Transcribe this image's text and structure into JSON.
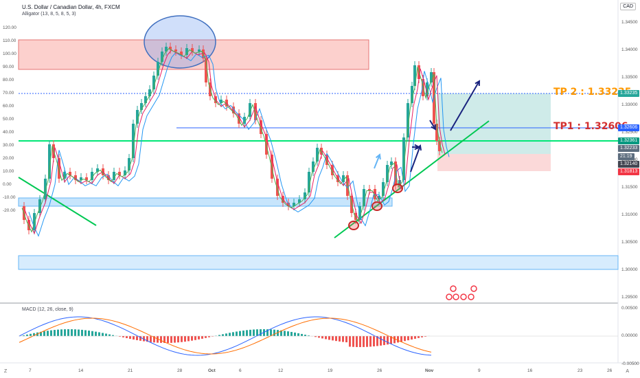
{
  "header": {
    "title": "U.S. Dollar / Canadian Dollar, 4h, FXCM",
    "indicator": "Alligator (13, 8, 5, 8, 5, 3)",
    "currency": "CAD"
  },
  "left_axis": [
    "120.00",
    "110.00",
    "100.00",
    "90.00",
    "80.00",
    "70.00",
    "60.00",
    "50.00",
    "40.00",
    "30.00",
    "20.00",
    "10.00",
    "0.00",
    "-10.00",
    "-20.00"
  ],
  "right_axis": [
    "1.34500",
    "1.34000",
    "1.33500",
    "1.33000",
    "1.32500",
    "1.32000",
    "1.31500",
    "1.31000",
    "1.30500",
    "1.30000",
    "1.29500"
  ],
  "price_badges": [
    {
      "text": "1.33235",
      "color": "#26a69a"
    },
    {
      "text": "1.32606",
      "color": "#2962ff"
    },
    {
      "text": "1.32361",
      "color": "#089981"
    },
    {
      "text": "1.32233",
      "color": "#5d6d7e"
    },
    {
      "text": "21:19",
      "color": "#5d6d7e"
    },
    {
      "text": "1.32140",
      "color": "#434651"
    },
    {
      "text": "1.31813",
      "color": "#f23645"
    }
  ],
  "targets": {
    "tp2": "TP 2 : 1.33235",
    "tp1": "TP1 : 1.32606",
    "tp2_color": "#ff9800",
    "tp1_color": "#d32f2f"
  },
  "macd": {
    "label": "MACD (12, 26, close, 9)",
    "axis": [
      "0.00500",
      "0.00000",
      "-0.00500"
    ]
  },
  "x_axis": [
    "7",
    "14",
    "21",
    "28",
    "Oct",
    "6",
    "12",
    "19",
    "26",
    "Nov",
    "9",
    "16",
    "23",
    "26"
  ],
  "corners": {
    "left": "Z",
    "right": "A"
  },
  "colors": {
    "jaw": "#2196f3",
    "teeth": "#e91e63",
    "lips": "#4caf50",
    "up": "#26a69a",
    "down": "#ef5350"
  }
}
